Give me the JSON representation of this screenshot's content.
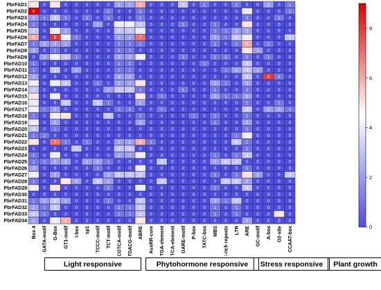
{
  "chart_data": {
    "type": "heatmap",
    "rows": [
      "PbrFAD1",
      "PbrFAD2",
      "PbrFAD3",
      "PbrFAD4",
      "PbrFAD5",
      "PbrFAD6",
      "PbrFAD7",
      "PbrFAD8",
      "PbrFAD9",
      "PbrFAD10",
      "PbrFAD11",
      "PbrFAD12",
      "PbrFAD13",
      "PbrFAD14",
      "PbrFAD15",
      "PbrFAD16",
      "PbrFAD17",
      "PbrFAD18",
      "PbrFAD19",
      "PbrFAD20",
      "PbrFAD21",
      "PbrFAD22",
      "PbrFAD23",
      "PbrFAD24",
      "PbrFAD25",
      "PbrFAD26",
      "PbrFAD27",
      "PbrFAD28",
      "PbrFAD29",
      "PbrFAD30",
      "PbrFAD31",
      "PbrFAD32",
      "PbrFAD33",
      "PbrFAD34"
    ],
    "columns": [
      "Box 4",
      "GATA-motif",
      "G-Box",
      "GT1-motif",
      "I-box",
      "sp1",
      "TCCC-motif",
      "TCT-motif",
      "CGTCA-motif",
      "TGACG-motif",
      "ABRE",
      "AuxRR-core",
      "TGA-element",
      "TCA-element",
      "GARE-motif",
      "P-box",
      "TATC-box",
      "MBS",
      "TC-rich repeats",
      "LTR",
      "ARE",
      "GC-motif",
      "A-box",
      "O2-site",
      "CCAAT-box"
    ],
    "values": [
      [
        5,
        0,
        5,
        0,
        0,
        0,
        0,
        0,
        2,
        2,
        6,
        0,
        0,
        0,
        3,
        0,
        1,
        0,
        0,
        1,
        0,
        0,
        2,
        0,
        1
      ],
      [
        9,
        0,
        0,
        0,
        0,
        0,
        0,
        1,
        0,
        0,
        1,
        0,
        0,
        0,
        0,
        0,
        0,
        0,
        0,
        0,
        4,
        0,
        0,
        0,
        1
      ],
      [
        2,
        1,
        3,
        1,
        0,
        1,
        0,
        1,
        0,
        0,
        1,
        0,
        0,
        0,
        0,
        0,
        0,
        0,
        0,
        0,
        1,
        0,
        0,
        1,
        0
      ],
      [
        1,
        0,
        0,
        0,
        0,
        0,
        2,
        0,
        4,
        4,
        3,
        0,
        0,
        0,
        1,
        0,
        0,
        1,
        0,
        0,
        5,
        0,
        0,
        0,
        0
      ],
      [
        3,
        0,
        4,
        2,
        0,
        0,
        0,
        0,
        3,
        3,
        4,
        0,
        0,
        0,
        0,
        0,
        0,
        1,
        1,
        2,
        2,
        0,
        0,
        0,
        0
      ],
      [
        6,
        0,
        8,
        4,
        1,
        0,
        0,
        0,
        2,
        2,
        7,
        0,
        0,
        0,
        0,
        0,
        0,
        2,
        1,
        3,
        4,
        0,
        0,
        0,
        3
      ],
      [
        1,
        2,
        2,
        2,
        0,
        0,
        0,
        0,
        1,
        1,
        1,
        0,
        0,
        0,
        0,
        0,
        0,
        1,
        0,
        1,
        6,
        0,
        1,
        0,
        0
      ],
      [
        2,
        0,
        1,
        0,
        0,
        0,
        0,
        0,
        1,
        1,
        0,
        0,
        0,
        0,
        0,
        0,
        0,
        0,
        0,
        0,
        5,
        2,
        0,
        0,
        0
      ],
      [
        0,
        2,
        4,
        3,
        1,
        0,
        0,
        0,
        2,
        2,
        4,
        0,
        0,
        0,
        1,
        0,
        0,
        1,
        1,
        0,
        1,
        0,
        1,
        0,
        0
      ],
      [
        1,
        0,
        0,
        0,
        0,
        0,
        0,
        0,
        1,
        1,
        0,
        0,
        0,
        0,
        0,
        0,
        1,
        0,
        0,
        0,
        3,
        0,
        0,
        0,
        0
      ],
      [
        1,
        0,
        3,
        0,
        2,
        0,
        0,
        0,
        1,
        1,
        0,
        0,
        0,
        0,
        0,
        0,
        0,
        0,
        1,
        2,
        3,
        2,
        0,
        0,
        0
      ],
      [
        2,
        0,
        0,
        0,
        0,
        0,
        0,
        0,
        2,
        2,
        0,
        0,
        0,
        0,
        0,
        0,
        0,
        0,
        0,
        0,
        3,
        0,
        8,
        1,
        0
      ],
      [
        4,
        0,
        4,
        3,
        0,
        0,
        1,
        0,
        2,
        2,
        5,
        0,
        0,
        0,
        0,
        0,
        0,
        2,
        1,
        0,
        2,
        0,
        0,
        0,
        0
      ],
      [
        3,
        0,
        0,
        0,
        0,
        0,
        0,
        2,
        3,
        3,
        1,
        0,
        0,
        0,
        1,
        0,
        0,
        1,
        0,
        0,
        1,
        0,
        0,
        0,
        0
      ],
      [
        5,
        0,
        4,
        0,
        0,
        0,
        0,
        0,
        0,
        0,
        5,
        0,
        1,
        0,
        0,
        0,
        0,
        2,
        1,
        1,
        2,
        0,
        0,
        0,
        0
      ],
      [
        4,
        0,
        0,
        3,
        0,
        0,
        3,
        1,
        0,
        0,
        2,
        0,
        0,
        0,
        0,
        0,
        0,
        0,
        0,
        0,
        1,
        0,
        0,
        1,
        0
      ],
      [
        4,
        1,
        2,
        0,
        0,
        0,
        0,
        0,
        1,
        1,
        0,
        0,
        1,
        0,
        0,
        0,
        0,
        0,
        0,
        0,
        3,
        0,
        2,
        2,
        1
      ],
      [
        1,
        0,
        4,
        5,
        0,
        0,
        0,
        3,
        0,
        0,
        1,
        0,
        0,
        0,
        0,
        1,
        0,
        1,
        0,
        0,
        1,
        0,
        0,
        0,
        0
      ],
      [
        4,
        0,
        2,
        0,
        0,
        0,
        0,
        0,
        0,
        0,
        2,
        0,
        0,
        0,
        0,
        0,
        0,
        1,
        0,
        0,
        2,
        0,
        0,
        0,
        0
      ],
      [
        3,
        0,
        1,
        0,
        0,
        0,
        0,
        0,
        0,
        0,
        0,
        0,
        0,
        0,
        0,
        0,
        0,
        0,
        0,
        0,
        1,
        0,
        0,
        0,
        0
      ],
      [
        1,
        1,
        0,
        0,
        0,
        0,
        0,
        0,
        0,
        0,
        0,
        0,
        0,
        0,
        0,
        0,
        0,
        0,
        0,
        1,
        4,
        0,
        0,
        0,
        0
      ],
      [
        5,
        0,
        7,
        1,
        0,
        1,
        0,
        0,
        2,
        2,
        6,
        1,
        0,
        0,
        0,
        0,
        0,
        0,
        0,
        3,
        1,
        0,
        0,
        0,
        0
      ],
      [
        0,
        0,
        0,
        0,
        3,
        0,
        0,
        0,
        3,
        3,
        0,
        0,
        0,
        0,
        0,
        0,
        0,
        0,
        0,
        0,
        1,
        0,
        0,
        0,
        0
      ],
      [
        1,
        0,
        4,
        0,
        0,
        0,
        0,
        0,
        2,
        2,
        4,
        0,
        0,
        0,
        0,
        0,
        0,
        1,
        0,
        1,
        3,
        0,
        0,
        0,
        0
      ],
      [
        1,
        1,
        2,
        2,
        0,
        2,
        2,
        1,
        0,
        0,
        0,
        0,
        3,
        0,
        0,
        0,
        0,
        2,
        3,
        3,
        0,
        0,
        0,
        0,
        0
      ],
      [
        2,
        0,
        0,
        0,
        0,
        0,
        1,
        0,
        0,
        0,
        4,
        0,
        0,
        0,
        0,
        0,
        0,
        0,
        0,
        0,
        1,
        0,
        0,
        0,
        0
      ],
      [
        4,
        0,
        2,
        0,
        0,
        0,
        0,
        2,
        3,
        3,
        3,
        0,
        0,
        0,
        0,
        0,
        0,
        1,
        0,
        1,
        5,
        2,
        0,
        0,
        3
      ],
      [
        1,
        0,
        0,
        5,
        2,
        0,
        3,
        2,
        0,
        0,
        0,
        0,
        3,
        0,
        0,
        0,
        0,
        0,
        3,
        3,
        2,
        0,
        0,
        0,
        0
      ],
      [
        4,
        0,
        5,
        0,
        0,
        0,
        0,
        1,
        0,
        0,
        4,
        0,
        0,
        0,
        0,
        0,
        0,
        1,
        0,
        0,
        3,
        0,
        0,
        0,
        0
      ],
      [
        0,
        0,
        0,
        0,
        0,
        0,
        0,
        0,
        0,
        0,
        0,
        0,
        0,
        0,
        0,
        0,
        0,
        0,
        0,
        0,
        0,
        0,
        0,
        0,
        0
      ],
      [
        1,
        2,
        3,
        2,
        0,
        0,
        0,
        1,
        0,
        0,
        3,
        0,
        0,
        0,
        0,
        0,
        0,
        2,
        1,
        3,
        0,
        0,
        0,
        0,
        0
      ],
      [
        2,
        1,
        3,
        0,
        0,
        0,
        0,
        0,
        1,
        1,
        3,
        0,
        0,
        0,
        0,
        0,
        0,
        1,
        0,
        1,
        0,
        0,
        0,
        0,
        0
      ],
      [
        3,
        1,
        0,
        0,
        0,
        0,
        0,
        0,
        1,
        1,
        3,
        0,
        0,
        0,
        0,
        0,
        0,
        1,
        0,
        1,
        0,
        0,
        0,
        5,
        0
      ],
      [
        2,
        0,
        4,
        6,
        0,
        0,
        0,
        0,
        0,
        0,
        5,
        0,
        0,
        0,
        0,
        0,
        0,
        0,
        0,
        0,
        2,
        0,
        0,
        0,
        0
      ]
    ],
    "color_scale": {
      "min": 0,
      "max": 9,
      "low": "#4d4de6",
      "mid": "#ffffff",
      "high": "#e00000",
      "ticks": [
        0,
        2,
        4,
        6,
        8
      ]
    },
    "groups": [
      {
        "label": "Light responsive",
        "columns": [
          "Box 4",
          "GATA-motif",
          "G-Box",
          "GT1-motif",
          "I-box",
          "sp1",
          "TCCC-motif",
          "TCT-motif"
        ]
      },
      {
        "label": "Phytohormone responsive",
        "columns": [
          "CGTCA-motif",
          "TGACG-motif",
          "ABRE",
          "AuxRR-core",
          "TGA-element",
          "TCA-element",
          "GARE-motif",
          "P-box",
          "TATC-box"
        ]
      },
      {
        "label": "Stress responsive",
        "columns": [
          "MBS",
          "TC-rich repeats",
          "LTR",
          "ARE",
          "GC-motif"
        ]
      },
      {
        "label": "Plant growth",
        "columns": [
          "A-box",
          "O2-site",
          "CCAAT-box"
        ]
      }
    ]
  }
}
